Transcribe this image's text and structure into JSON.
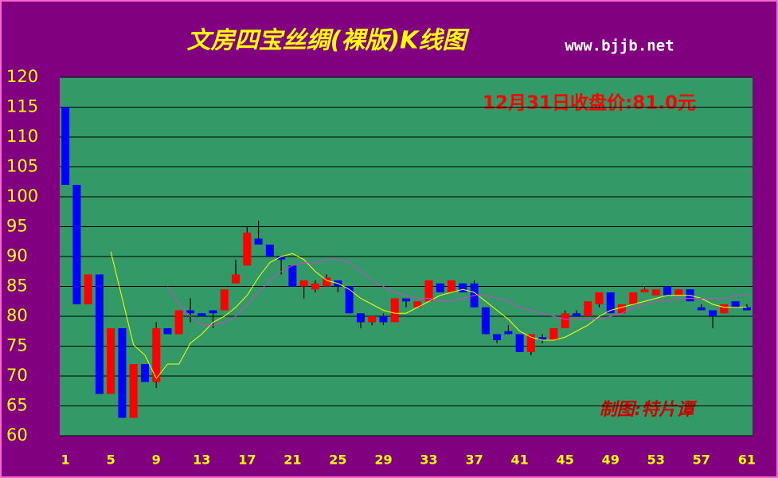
{
  "chart_data": {
    "type": "candlestick",
    "title": "文房四宝丝绸(裸版)K线图",
    "subtitle": "www.bjjb.net",
    "annotation": "12月31日收盘价:81.0元",
    "credit": "制图:特片谭",
    "x": [
      1,
      2,
      3,
      4,
      5,
      6,
      7,
      8,
      9,
      10,
      11,
      12,
      13,
      14,
      15,
      16,
      17,
      18,
      19,
      20,
      21,
      22,
      23,
      24,
      25,
      26,
      27,
      28,
      29,
      30,
      31,
      32,
      33,
      34,
      35,
      36,
      37,
      38,
      39,
      40,
      41,
      42,
      43,
      44,
      45,
      46,
      47,
      48,
      49,
      50,
      51,
      52,
      53,
      54,
      55,
      56,
      57,
      58,
      59,
      60,
      61
    ],
    "open": [
      115,
      102,
      82,
      87,
      67,
      78,
      63,
      72,
      69,
      78,
      77,
      81,
      80.5,
      81,
      81,
      85.5,
      88.5,
      93,
      92,
      90,
      88.5,
      85,
      84.5,
      85,
      86,
      85,
      80.5,
      79,
      80,
      79,
      83,
      81.5,
      82.5,
      85.5,
      84,
      85.5,
      85.5,
      81.5,
      77,
      77.5,
      77,
      74,
      76.5,
      76,
      78,
      80.5,
      80,
      82,
      84,
      80.5,
      82,
      84,
      83.5,
      85,
      83.5,
      84.5,
      81.5,
      81,
      80.5,
      82.5,
      81.5
    ],
    "high": [
      115,
      102,
      87,
      87,
      78,
      78,
      72,
      72,
      79,
      78,
      81,
      83,
      80.5,
      81,
      84.5,
      89.5,
      95,
      96,
      92,
      90,
      88.5,
      86,
      86,
      87,
      86,
      85,
      80.5,
      80,
      80.5,
      83,
      83,
      82.5,
      86,
      85.5,
      86,
      85.5,
      86,
      81.5,
      77,
      78.5,
      77,
      77,
      77,
      78,
      81,
      81,
      82.5,
      84,
      84,
      82,
      84,
      85,
      84.5,
      85,
      84.5,
      84.5,
      82,
      81,
      82,
      82.5,
      82
    ],
    "low": [
      102,
      82,
      82,
      67,
      67,
      63,
      63,
      69,
      68,
      77,
      77,
      79,
      80,
      78,
      81,
      85.5,
      88.5,
      92,
      90,
      87,
      85,
      83,
      84,
      85,
      84,
      80.5,
      78,
      78.5,
      78.5,
      79,
      81.5,
      81.5,
      82.5,
      84,
      84,
      84,
      81.5,
      77,
      75.5,
      77,
      74,
      73.5,
      75.5,
      76,
      78,
      80,
      80,
      81.5,
      80.5,
      80.5,
      82,
      84,
      83.5,
      83.5,
      83.5,
      82.5,
      81,
      78,
      80.5,
      81.5,
      81
    ],
    "close": [
      102,
      82,
      87,
      67,
      78,
      63,
      72,
      69,
      78,
      77,
      81,
      80.5,
      80,
      80.5,
      84.5,
      87,
      94,
      92,
      90,
      89.5,
      85,
      86,
      85.5,
      86.5,
      85,
      80.5,
      79,
      80,
      79,
      83,
      82.5,
      82.5,
      86,
      84,
      86,
      84,
      81.5,
      77,
      76,
      77,
      74,
      77,
      76,
      78,
      80.5,
      80,
      82.5,
      84,
      80.5,
      82,
      84,
      84.5,
      84.5,
      83.5,
      84.5,
      82.5,
      81,
      80,
      82,
      81.5,
      81
    ],
    "up_color": "#ff0000",
    "down_color": "#0000ff",
    "lines": [
      {
        "color": "#ffff00",
        "values": [
          null,
          null,
          null,
          null,
          90.8,
          83,
          75.2,
          73.5,
          69.6,
          72,
          72,
          75.5,
          77,
          79,
          80,
          81.5,
          83.5,
          86.5,
          89,
          90,
          90.5,
          89.5,
          87.5,
          86,
          85.5,
          84.5,
          83,
          82,
          81,
          80.5,
          80.5,
          81.5,
          82.5,
          83.5,
          84,
          84.5,
          84,
          82.5,
          81,
          79.5,
          77.5,
          76.5,
          76,
          76,
          76.5,
          77.5,
          78.5,
          80,
          81,
          81.5,
          82,
          82.5,
          83,
          83.5,
          83.5,
          83.5,
          83,
          82,
          81.5,
          81.5,
          81.5
        ]
      },
      {
        "color": "#cc44cc",
        "values": [
          null,
          null,
          null,
          null,
          null,
          null,
          null,
          null,
          null,
          85,
          82,
          80,
          78.5,
          78.5,
          79,
          80,
          82,
          84,
          86,
          87.5,
          88.5,
          89,
          89,
          89.5,
          89.5,
          89,
          87.5,
          86,
          85,
          84,
          83.5,
          83,
          83,
          82.5,
          82.5,
          83,
          83.5,
          83.5,
          83,
          82.5,
          81.5,
          81,
          80.5,
          80,
          79.5,
          79.5,
          79.5,
          79.5,
          80,
          80.5,
          81.5,
          82,
          82.5,
          82.5,
          83,
          83,
          83,
          83,
          83,
          83.5,
          83.5
        ]
      }
    ],
    "xlim": [
      0.5,
      61.5
    ],
    "xticks": [
      1,
      5,
      9,
      13,
      17,
      21,
      25,
      29,
      33,
      37,
      41,
      45,
      49,
      53,
      57,
      61
    ],
    "ylim": [
      60,
      120
    ],
    "yticks": [
      60,
      65,
      70,
      75,
      80,
      85,
      90,
      95,
      100,
      105,
      110,
      115,
      120
    ],
    "grid": true
  }
}
